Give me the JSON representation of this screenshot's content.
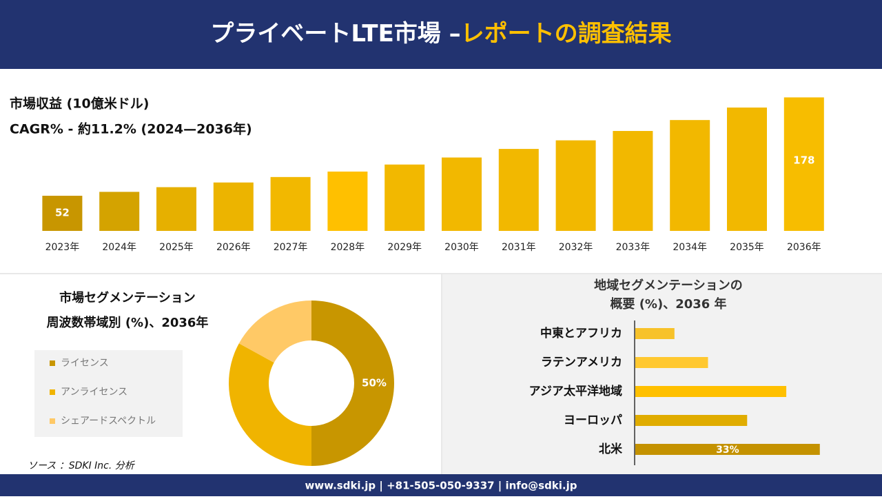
{
  "header": {
    "title": "プライベートLTE市場 –",
    "highlight": "レポートの調査結果"
  },
  "chart_data": [
    {
      "type": "bar",
      "title": "市場収益 (10億米ドル)",
      "subtitle": "CAGR% - 約11.2% (2024—2036年)",
      "categories": [
        "2023年",
        "2024年",
        "2025年",
        "2026年",
        "2027年",
        "2028年",
        "2029年",
        "2030年",
        "2031年",
        "2032年",
        "2033年",
        "2034年",
        "2035年",
        "2036年"
      ],
      "values": [
        52,
        57,
        63,
        69,
        76,
        83,
        92,
        101,
        112,
        123,
        135,
        149,
        165,
        178
      ],
      "colors": [
        "#c89600",
        "#d4a300",
        "#e6b000",
        "#ecb400",
        "#f2b800",
        "#ffc000",
        "#f2b800",
        "#f2b800",
        "#f2b800",
        "#f2b800",
        "#f2b800",
        "#f2b800",
        "#f2b800",
        "#f7bd00"
      ],
      "ylim": [
        7,
        188
      ]
    },
    {
      "type": "donut",
      "title": "市場セグメンテーション",
      "subtitle": "周波数帯域別 (%)、2036年",
      "categories": [
        "ライセンス",
        "アンライセンス",
        "シェアードスペクトル"
      ],
      "values": [
        50,
        33,
        17
      ],
      "value_labels": [
        "50%",
        null,
        null
      ],
      "colors": [
        "#c89600",
        "#f0b400",
        "#ffc966"
      ]
    },
    {
      "type": "hbar",
      "title": "地域セグメンテーションの",
      "subtitle": "概要 (%)、2036 年",
      "categories": [
        "中東とアフリカ",
        "ラテンアメリカ",
        "アジア太平洋地域",
        "ヨーロッパ",
        "北米"
      ],
      "values": [
        7,
        13,
        27,
        20,
        33
      ],
      "value_labels": [
        null,
        null,
        null,
        null,
        "33%"
      ],
      "colors": [
        "#f7c22a",
        "#ffc830",
        "#ffc000",
        "#e0ac00",
        "#c49200"
      ],
      "xlim": [
        0,
        35
      ]
    }
  ],
  "source": "ソース ：SDKI Inc. 分析",
  "footer": "www.sdki.jp | +81-505-050-9337 | info@sdki.jp"
}
